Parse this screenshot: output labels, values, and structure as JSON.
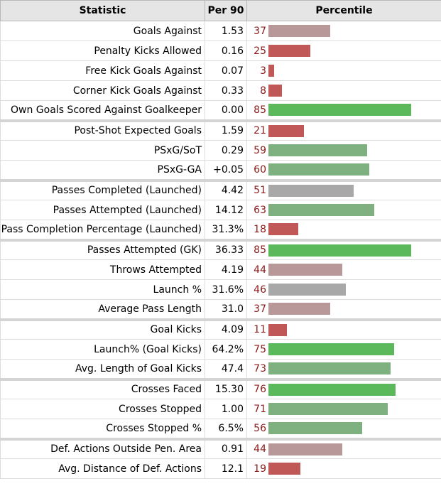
{
  "headers": {
    "statistic": "Statistic",
    "per90": "Per 90",
    "percentile": "Percentile"
  },
  "colors": {
    "high": "#5bb85b",
    "midhigh": "#7fb07f",
    "mid": "#a8a8a8",
    "midlow": "#b89898",
    "low": "#c05858",
    "text_high": "#333333",
    "text_low": "#8b1a1a"
  },
  "rows": [
    {
      "stat": "Goals Against",
      "per90": "1.53",
      "percentile": 37,
      "group_start": false
    },
    {
      "stat": "Penalty Kicks Allowed",
      "per90": "0.16",
      "percentile": 25,
      "group_start": false
    },
    {
      "stat": "Free Kick Goals Against",
      "per90": "0.07",
      "percentile": 3,
      "group_start": false
    },
    {
      "stat": "Corner Kick Goals Against",
      "per90": "0.33",
      "percentile": 8,
      "group_start": false
    },
    {
      "stat": "Own Goals Scored Against Goalkeeper",
      "per90": "0.00",
      "percentile": 85,
      "group_start": false
    },
    {
      "stat": "Post-Shot Expected Goals",
      "per90": "1.59",
      "percentile": 21,
      "group_start": true
    },
    {
      "stat": "PSxG/SoT",
      "per90": "0.29",
      "percentile": 59,
      "group_start": false
    },
    {
      "stat": "PSxG-GA",
      "per90": "+0.05",
      "percentile": 60,
      "group_start": false
    },
    {
      "stat": "Passes Completed (Launched)",
      "per90": "4.42",
      "percentile": 51,
      "group_start": true
    },
    {
      "stat": "Passes Attempted (Launched)",
      "per90": "14.12",
      "percentile": 63,
      "group_start": false
    },
    {
      "stat": "Pass Completion Percentage (Launched)",
      "per90": "31.3%",
      "percentile": 18,
      "group_start": false
    },
    {
      "stat": "Passes Attempted (GK)",
      "per90": "36.33",
      "percentile": 85,
      "group_start": true
    },
    {
      "stat": "Throws Attempted",
      "per90": "4.19",
      "percentile": 44,
      "group_start": false
    },
    {
      "stat": "Launch %",
      "per90": "31.6%",
      "percentile": 46,
      "group_start": false
    },
    {
      "stat": "Average Pass Length",
      "per90": "31.0",
      "percentile": 37,
      "group_start": false
    },
    {
      "stat": "Goal Kicks",
      "per90": "4.09",
      "percentile": 11,
      "group_start": true
    },
    {
      "stat": "Launch% (Goal Kicks)",
      "per90": "64.2%",
      "percentile": 75,
      "group_start": false
    },
    {
      "stat": "Avg. Length of Goal Kicks",
      "per90": "47.4",
      "percentile": 73,
      "group_start": false
    },
    {
      "stat": "Crosses Faced",
      "per90": "15.30",
      "percentile": 76,
      "group_start": true
    },
    {
      "stat": "Crosses Stopped",
      "per90": "1.00",
      "percentile": 71,
      "group_start": false
    },
    {
      "stat": "Crosses Stopped %",
      "per90": "6.5%",
      "percentile": 56,
      "group_start": false
    },
    {
      "stat": "Def. Actions Outside Pen. Area",
      "per90": "0.91",
      "percentile": 44,
      "group_start": true
    },
    {
      "stat": "Avg. Distance of Def. Actions",
      "per90": "12.1",
      "percentile": 19,
      "group_start": false
    }
  ]
}
